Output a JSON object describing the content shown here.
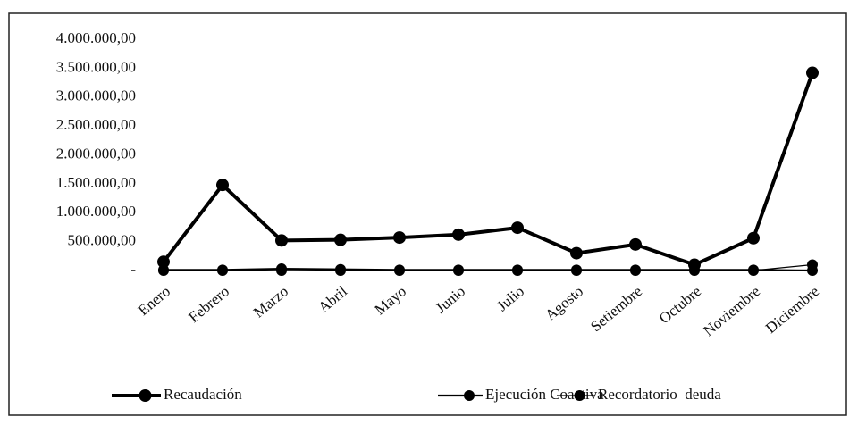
{
  "chart_data": {
    "type": "line",
    "categories": [
      "Enero",
      "Febrero",
      "Marzo",
      "Abril",
      "Mayo",
      "Junio",
      "Julio",
      "Agosto",
      "Setiembre",
      "Octubre",
      "Noviembre",
      "Diciembre"
    ],
    "series": [
      {
        "name": "Recaudación",
        "color": "#000000",
        "values": [
          150000,
          1480000,
          520000,
          530000,
          570000,
          620000,
          740000,
          300000,
          450000,
          100000,
          560000,
          3420000
        ]
      },
      {
        "name": "Ejecución Coactiva",
        "color": "#000000",
        "values": [
          10000,
          10000,
          30000,
          20000,
          10000,
          10000,
          10000,
          10000,
          10000,
          10000,
          10000,
          0
        ]
      },
      {
        "name": "Recordatorio  deuda",
        "color": "#000000",
        "values": [
          0,
          0,
          0,
          0,
          0,
          0,
          0,
          0,
          0,
          0,
          0,
          100000
        ]
      }
    ],
    "ylim": [
      0,
      4000000
    ],
    "yticks": [
      {
        "value": 0,
        "label": "-"
      },
      {
        "value": 500000,
        "label": "500.000,00"
      },
      {
        "value": 1000000,
        "label": "1.000.000,00"
      },
      {
        "value": 1500000,
        "label": "1.500.000,00"
      },
      {
        "value": 2000000,
        "label": "2.000.000,00"
      },
      {
        "value": 2500000,
        "label": "2.500.000,00"
      },
      {
        "value": 3000000,
        "label": "3.000.000,00"
      },
      {
        "value": 3500000,
        "label": "3.500.000,00"
      },
      {
        "value": 4000000,
        "label": "4.000.000,00"
      }
    ],
    "grid": false,
    "legend": "bottom"
  }
}
